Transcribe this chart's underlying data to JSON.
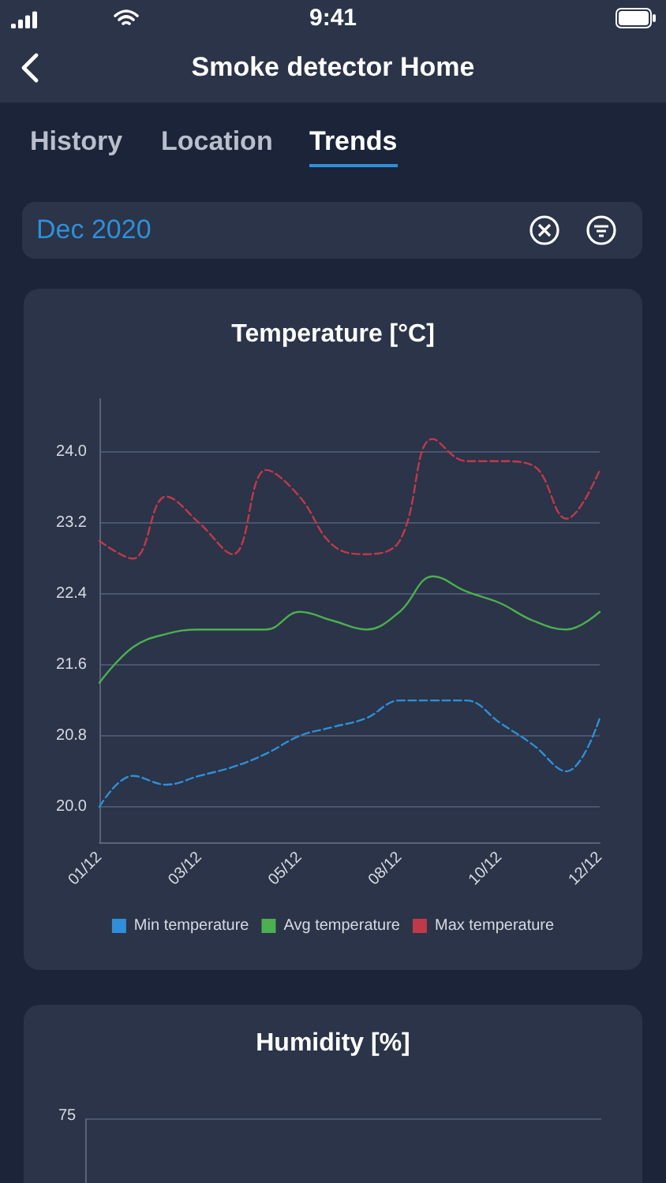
{
  "chart_data": [
    {
      "type": "other",
      "title": "Smoke detector Home",
      "annotations": [
        "9:41",
        "History",
        "Location",
        "Trends",
        "Dec 2020"
      ]
    },
    {
      "type": "line",
      "title": "Temperature [°C]",
      "categories": [
        "01/12",
        null,
        null,
        "03/12",
        null,
        null,
        "05/12",
        null,
        null,
        "08/12",
        null,
        null,
        "10/12",
        null,
        null,
        "12/12"
      ],
      "series": [
        {
          "name": "Min temperature",
          "color": "#2f8fd8",
          "line_style": "dashed",
          "values": [
            20.0,
            20.35,
            20.25,
            20.35,
            20.45,
            20.6,
            20.8,
            20.9,
            21.0,
            21.2,
            21.2,
            21.2,
            20.95,
            20.7,
            20.4,
            21.0
          ]
        },
        {
          "name": "Avg temperature",
          "color": "#4caf50",
          "line_style": "solid",
          "values": [
            21.4,
            21.8,
            21.95,
            22.0,
            22.0,
            22.0,
            22.2,
            22.1,
            22.0,
            22.2,
            22.6,
            22.43,
            22.3,
            22.1,
            22.0,
            22.2
          ]
        },
        {
          "name": "Max temperature",
          "color": "#c0394b",
          "line_style": "dashed",
          "values": [
            23.0,
            22.8,
            23.5,
            23.2,
            22.85,
            23.8,
            23.5,
            22.95,
            22.85,
            23.0,
            24.15,
            23.9,
            23.9,
            23.85,
            23.25,
            23.8
          ]
        }
      ],
      "ylim": [
        19.6,
        24.6
      ],
      "yticks": [
        {
          "value": 20,
          "label": "20.0"
        },
        {
          "value": 20.8,
          "label": "20.8"
        },
        {
          "value": 21.6,
          "label": "21.6"
        },
        {
          "value": 22.4,
          "label": "22.4"
        },
        {
          "value": 23.2,
          "label": "23.2"
        },
        {
          "value": 24,
          "label": "24.0"
        }
      ],
      "grid": "y",
      "legend": "bottom",
      "marker": "none"
    },
    {
      "type": "other",
      "title": "Humidity [%]",
      "annotations": [
        "75"
      ]
    }
  ]
}
